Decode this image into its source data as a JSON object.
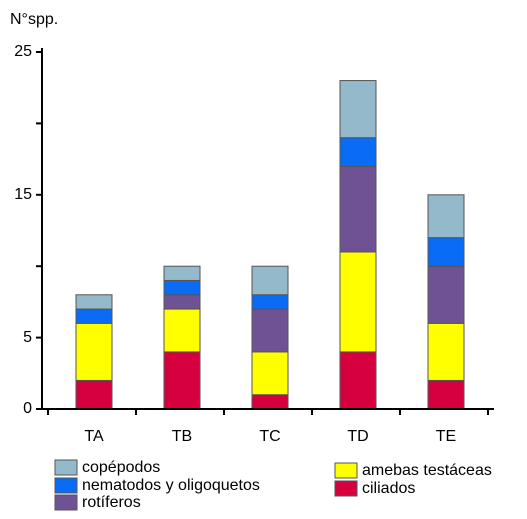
{
  "chart_data": {
    "type": "stacked_bar",
    "y_label": "N°spp.",
    "categories": [
      "TA",
      "TB",
      "TC",
      "TD",
      "TE"
    ],
    "series": [
      {
        "name": "copépodos",
        "color": "#93b9cb",
        "values": [
          1,
          1,
          2,
          4,
          3
        ]
      },
      {
        "name": "nematodos y oligoquetos",
        "color": "#0a6cf5",
        "values": [
          1,
          1,
          1,
          2,
          2
        ]
      },
      {
        "name": "rotíferos",
        "color": "#6e5293",
        "values": [
          0,
          1,
          3,
          6,
          4
        ]
      },
      {
        "name": "amebas testáceas",
        "color": "#ffff00",
        "values": [
          4,
          3,
          3,
          7,
          4
        ]
      },
      {
        "name": "ciliados",
        "color": "#d6003f",
        "values": [
          2,
          4,
          1,
          4,
          2
        ]
      }
    ],
    "ylim": [
      0,
      25
    ],
    "yticks": [
      0,
      5,
      15,
      25
    ],
    "minor_yticks": [
      10,
      20
    ]
  }
}
